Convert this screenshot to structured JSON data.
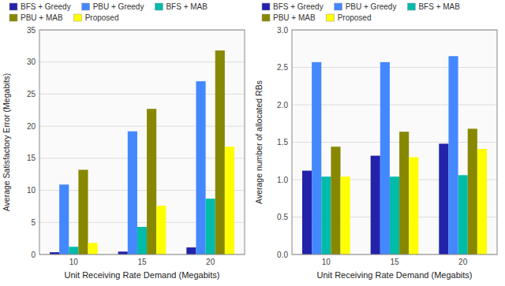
{
  "chart_data": [
    {
      "type": "bar",
      "xlabel": "Unit Receiving Rate Demand (Megabits)",
      "ylabel": "Average Satisfactory Error (Megabits)",
      "categories": [
        10,
        15,
        20
      ],
      "series": [
        {
          "name": "BFS + Greedy",
          "color": "#2222aa",
          "values": [
            0.35,
            0.45,
            1.1
          ]
        },
        {
          "name": "PBU + Greedy",
          "color": "#4488ff",
          "values": [
            10.9,
            19.2,
            27.0
          ]
        },
        {
          "name": "BFS + MAB",
          "color": "#00bbaa",
          "values": [
            1.2,
            4.3,
            8.7
          ]
        },
        {
          "name": "PBU + MAB",
          "color": "#888800",
          "values": [
            13.2,
            22.7,
            31.8
          ]
        },
        {
          "name": "Proposed",
          "color": "#ffff00",
          "values": [
            1.8,
            7.6,
            16.8
          ]
        }
      ],
      "ylim": [
        0,
        35
      ],
      "yticks": [
        0,
        5,
        10,
        15,
        20,
        25,
        30,
        35
      ],
      "grid": true,
      "legend": "top"
    },
    {
      "type": "bar",
      "xlabel": "Unit Receiving Rate Demand (Megabits)",
      "ylabel": "Average number of allocated RBs",
      "categories": [
        10,
        15,
        20
      ],
      "series": [
        {
          "name": "BFS + Greedy",
          "color": "#2222aa",
          "values": [
            1.12,
            1.32,
            1.48
          ]
        },
        {
          "name": "PBU + Greedy",
          "color": "#4488ff",
          "values": [
            2.57,
            2.57,
            2.65
          ]
        },
        {
          "name": "BFS + MAB",
          "color": "#00bbaa",
          "values": [
            1.04,
            1.04,
            1.06
          ]
        },
        {
          "name": "PBU + MAB",
          "color": "#888800",
          "values": [
            1.44,
            1.64,
            1.68
          ]
        },
        {
          "name": "Proposed",
          "color": "#ffff00",
          "values": [
            1.04,
            1.3,
            1.41
          ]
        }
      ],
      "ylim": [
        0,
        3
      ],
      "yticks": [
        {
          "value": 0,
          "label": "0.0"
        },
        0.5,
        {
          "value": 1.0,
          "label": "1.0"
        },
        1.5,
        {
          "value": 2.0,
          "label": "2.0"
        },
        2.5,
        {
          "value": 3.0,
          "label": "3.0"
        }
      ],
      "grid": true,
      "legend": "top"
    }
  ]
}
